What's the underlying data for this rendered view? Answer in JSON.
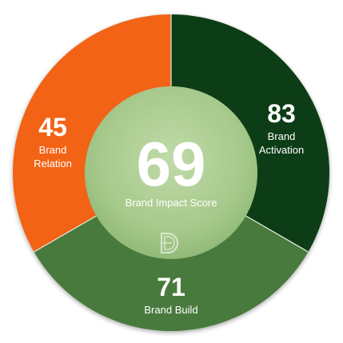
{
  "chart_data": {
    "type": "pie",
    "center": {
      "value": "69",
      "label": "Brand Impact Score",
      "color": "#a6c98b"
    },
    "segments": [
      {
        "name": "Brand Activation",
        "value": 83,
        "value_text": "83",
        "label_lines": [
          "Brand",
          "Activation"
        ],
        "color": "#0e3d16"
      },
      {
        "name": "Brand Build",
        "value": 71,
        "value_text": "71",
        "label_lines": [
          "Brand Build"
        ],
        "color": "#487a3c"
      },
      {
        "name": "Brand Relation",
        "value": 45,
        "value_text": "45",
        "label_lines": [
          "Brand",
          "Relation"
        ],
        "color": "#f26419"
      }
    ]
  },
  "logo": {
    "name": "d-logo",
    "color": "#d5e6c8"
  }
}
